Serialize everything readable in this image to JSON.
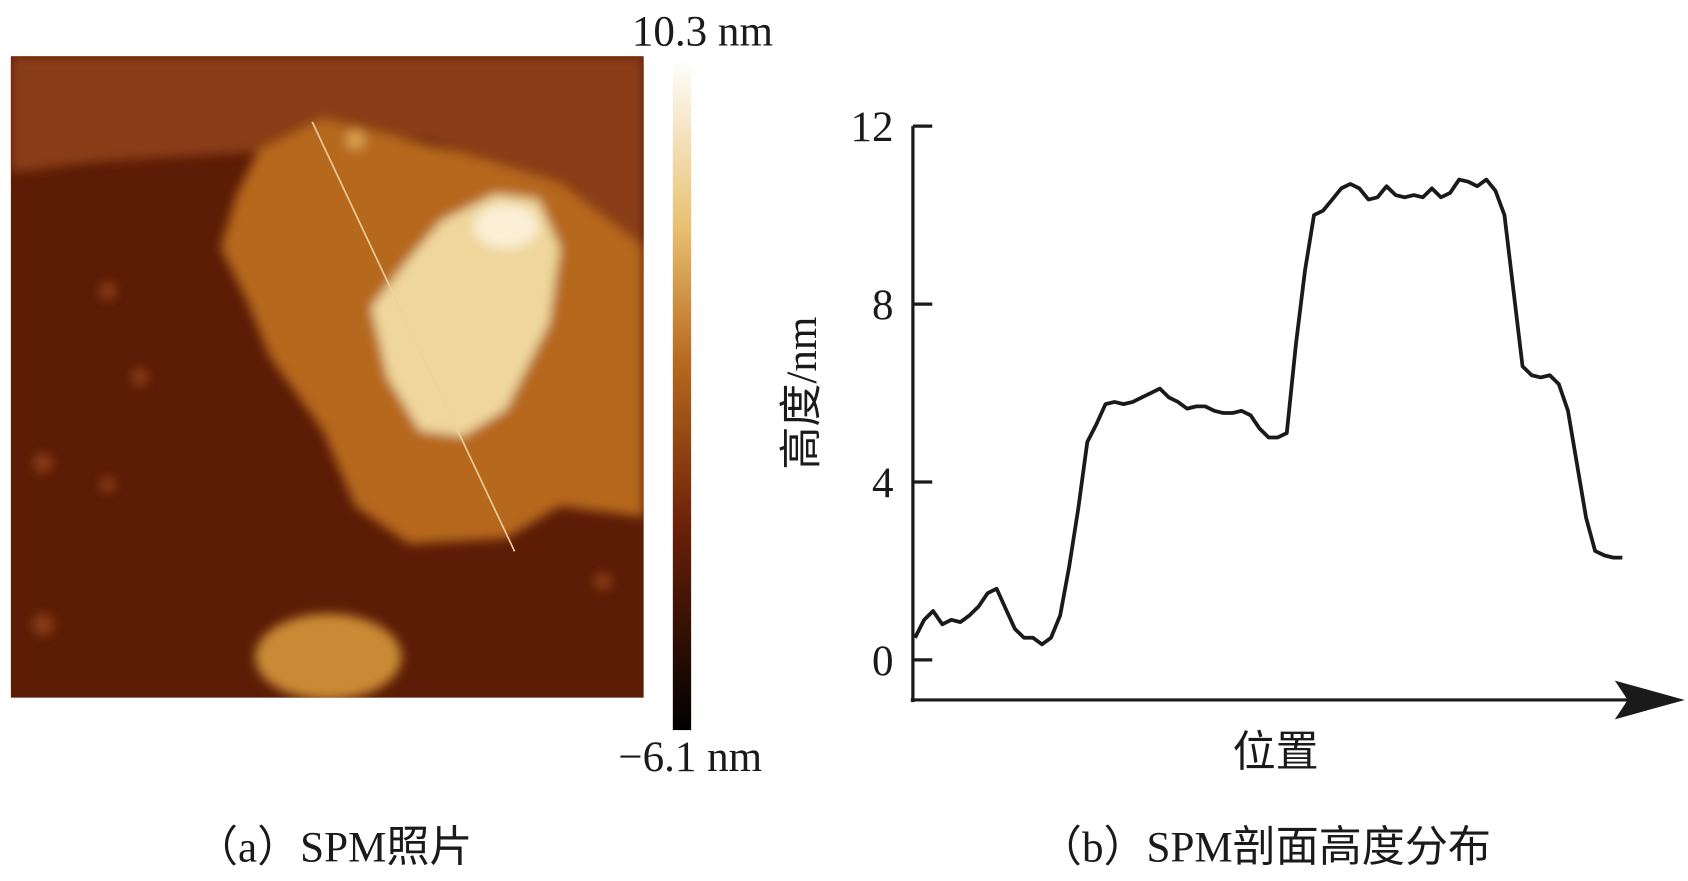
{
  "image_panel": {
    "caption": "（a）SPM照片",
    "scale_max": "10.3 nm",
    "scale_min": "−6.1 nm"
  },
  "chart_data": {
    "type": "line",
    "caption": "（b）SPM剖面高度分布",
    "ylabel": "高度/nm",
    "xlabel": "位置",
    "color": "#1a1a1a",
    "values": [
      0.5,
      0.9,
      1.1,
      0.8,
      0.9,
      0.85,
      1.0,
      1.2,
      1.5,
      1.6,
      1.15,
      0.7,
      0.5,
      0.5,
      0.35,
      0.5,
      1.0,
      2.1,
      3.4,
      4.9,
      5.3,
      5.75,
      5.8,
      5.75,
      5.8,
      5.9,
      6.0,
      6.1,
      5.9,
      5.8,
      5.65,
      5.7,
      5.7,
      5.6,
      5.55,
      5.55,
      5.6,
      5.5,
      5.2,
      5.0,
      5.0,
      5.1,
      7.1,
      8.75,
      10.0,
      10.1,
      10.35,
      10.6,
      10.7,
      10.6,
      10.35,
      10.4,
      10.65,
      10.45,
      10.4,
      10.45,
      10.4,
      10.6,
      10.4,
      10.5,
      10.8,
      10.75,
      10.65,
      10.8,
      10.55,
      10.0,
      8.3,
      6.6,
      6.4,
      6.35,
      6.4,
      6.2,
      5.6,
      4.4,
      3.2,
      2.45,
      2.35,
      2.3,
      2.3
    ],
    "ylim": [
      -0.9,
      12
    ],
    "yticks": [
      0,
      4,
      8,
      12
    ]
  }
}
